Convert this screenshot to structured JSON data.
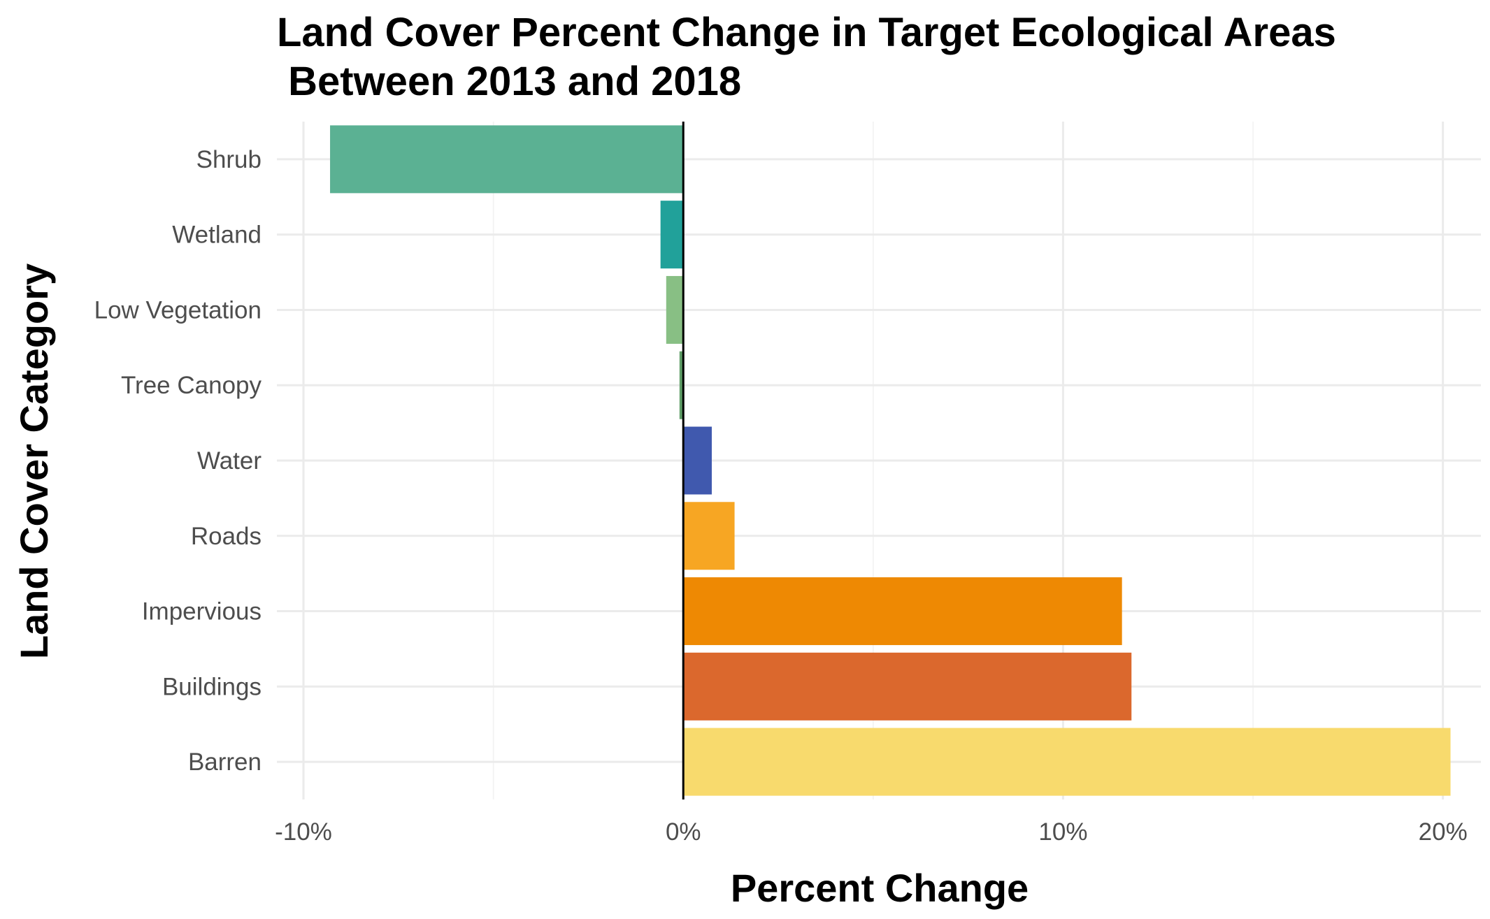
{
  "chart_data": {
    "type": "bar",
    "orientation": "horizontal",
    "title": "Land Cover Percent Change in Target Ecological Areas",
    "subtitle": " Between 2013 and 2018",
    "xlabel": "Percent Change",
    "ylabel": "Land Cover Category",
    "xlim": [
      -10.7,
      21.0
    ],
    "xticks": [
      -10,
      0,
      10,
      20
    ],
    "xtick_labels": [
      "-10%",
      "0%",
      "10%",
      "20%"
    ],
    "grid": true,
    "legend": "none",
    "zero_line": true,
    "categories": [
      "Shrub",
      "Wetland",
      "Low Vegetation",
      "Tree Canopy",
      "Water",
      "Roads",
      "Impervious",
      "Buildings",
      "Barren"
    ],
    "values": [
      -9.3,
      -0.6,
      -0.45,
      -0.1,
      0.75,
      1.35,
      11.55,
      11.8,
      20.2
    ],
    "colors": [
      "#5bb193",
      "#21a19a",
      "#88bf84",
      "#5e9d66",
      "#4059ae",
      "#f7a623",
      "#ee8903",
      "#db682d",
      "#f8da6d"
    ]
  }
}
